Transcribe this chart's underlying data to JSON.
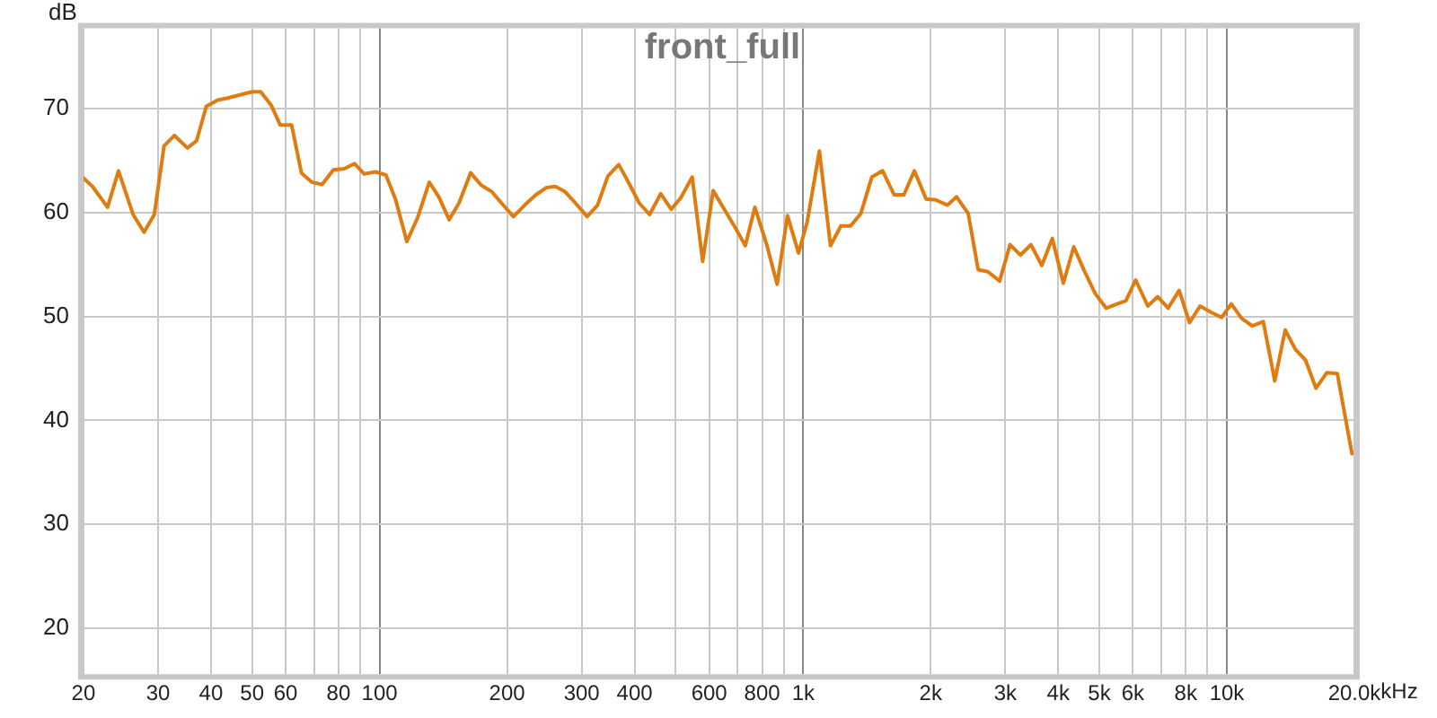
{
  "chart_data": {
    "type": "line",
    "title": "front_full",
    "ylabel": "dB",
    "x": [
      20,
      21,
      22.8,
      24.2,
      26.2,
      27.8,
      29.4,
      31,
      32.8,
      35.2,
      37,
      39,
      41.5,
      43.8,
      50,
      52.4,
      55.5,
      58.3,
      62,
      65.4,
      69.2,
      73.2,
      77.8,
      82.5,
      87.3,
      92,
      97.8,
      103.5,
      109,
      116,
      123,
      131,
      138,
      146,
      154,
      164,
      174,
      184,
      194,
      207,
      220,
      234,
      248,
      260,
      274,
      290,
      309,
      327,
      346,
      367,
      388,
      410,
      434,
      461,
      488,
      514,
      547,
      579,
      613,
      658,
      690,
      730,
      769,
      820,
      868,
      918,
      975,
      1022,
      1092,
      1160,
      1227,
      1294,
      1368,
      1452,
      1540,
      1639,
      1729,
      1830,
      1950,
      2056,
      2190,
      2302,
      2452,
      2588,
      2729,
      2908,
      3078,
      3256,
      3448,
      3658,
      3872,
      4112,
      4352,
      4606,
      4890,
      5188,
      5512,
      5778,
      6092,
      6508,
      6870,
      7270,
      7718,
      8166,
      8642,
      9182,
      9718,
      10246,
      10844,
      11476,
      12190,
      12976,
      13732,
      14532,
      15338,
      16232,
      17228,
      18232,
      19740
    ],
    "series": [
      {
        "color": "#e07b10",
        "values": [
          63.3,
          62.5,
          60.5,
          64,
          59.8,
          58.1,
          59.8,
          66.4,
          67.4,
          66.2,
          66.9,
          70.2,
          70.8,
          71,
          71.6,
          71.6,
          70.3,
          68.4,
          68.4,
          63.8,
          62.9,
          62.7,
          64.1,
          64.2,
          64.7,
          63.7,
          63.9,
          63.6,
          61.3,
          57.2,
          59.5,
          62.9,
          61.5,
          59.3,
          60.9,
          63.8,
          62.6,
          62,
          60.9,
          59.6,
          60.7,
          61.7,
          62.4,
          62.5,
          62,
          60.9,
          59.6,
          60.7,
          63.5,
          64.6,
          62.8,
          60.9,
          59.8,
          61.8,
          60.3,
          61.4,
          63.4,
          55.3,
          62.1,
          60,
          58.6,
          56.8,
          60.5,
          56.9,
          53.1,
          59.7,
          56.1,
          59.1,
          65.9,
          56.8,
          58.7,
          58.7,
          59.9,
          63.4,
          64,
          61.7,
          61.7,
          64,
          61.3,
          61.2,
          60.7,
          61.5,
          59.9,
          54.5,
          54.3,
          53.4,
          56.9,
          55.9,
          56.9,
          54.9,
          57.5,
          53.2,
          56.7,
          54.4,
          52.2,
          50.8,
          51.2,
          51.5,
          53.5,
          51,
          51.9,
          50.8,
          52.5,
          49.4,
          51,
          50.4,
          49.9,
          51.2,
          49.8,
          49.1,
          49.5,
          43.8,
          48.7,
          46.8,
          45.8,
          43.1,
          44.6,
          44.5,
          36.8
        ]
      }
    ],
    "xlim": [
      20,
      20000
    ],
    "ylim": [
      15.6,
      77.7
    ],
    "xticks": [
      20,
      30,
      40,
      50,
      60,
      {
        "value": 70,
        "label": null
      },
      80,
      {
        "value": 90,
        "label": null
      },
      100,
      200,
      300,
      400,
      {
        "value": 500,
        "label": null
      },
      600,
      {
        "value": 700,
        "label": null
      },
      800,
      {
        "value": 900,
        "label": null
      },
      {
        "value": 1000,
        "label": "1k"
      },
      {
        "value": 2000,
        "label": "2k"
      },
      {
        "value": 3000,
        "label": "3k"
      },
      {
        "value": 4000,
        "label": "4k"
      },
      {
        "value": 5000,
        "label": "5k"
      },
      {
        "value": 6000,
        "label": "6k"
      },
      {
        "value": 7000,
        "label": null
      },
      {
        "value": 8000,
        "label": "8k"
      },
      {
        "value": 9000,
        "label": null
      },
      {
        "value": 10000,
        "label": "10k"
      },
      {
        "value": 20000,
        "label": "20.0k"
      }
    ],
    "xlabel": "kHz",
    "log": "x",
    "yticks": [
      20,
      30,
      40,
      50,
      60,
      70
    ],
    "grid": true,
    "legend": false,
    "marker": "none",
    "line_style": "solid"
  }
}
